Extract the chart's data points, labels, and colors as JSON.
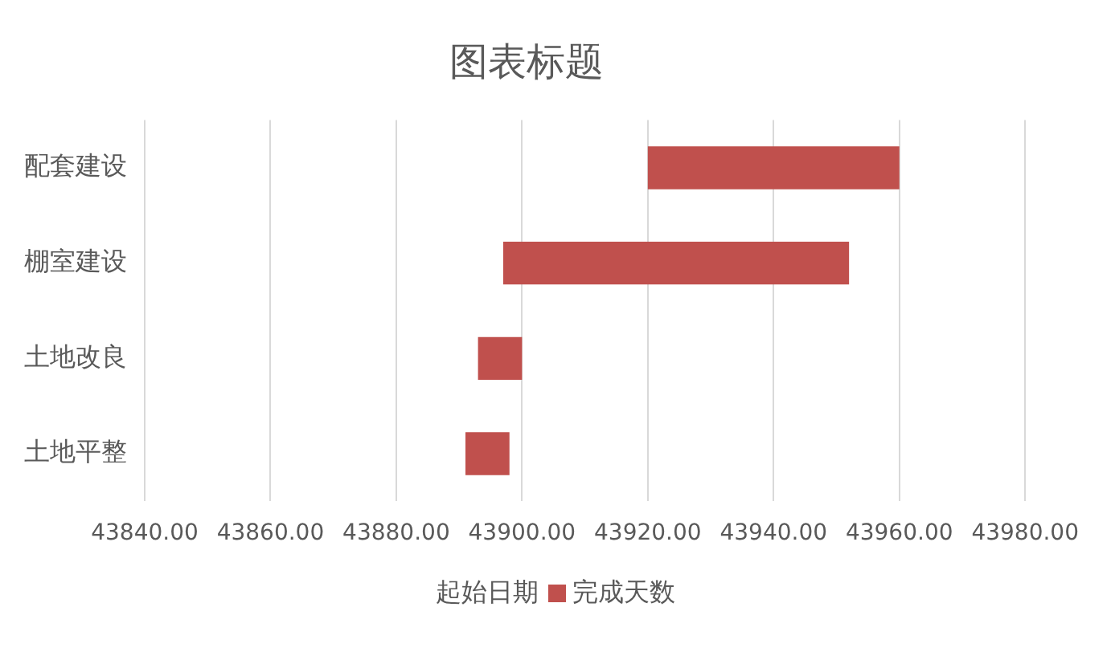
{
  "chart_data": {
    "type": "bar",
    "orientation": "horizontal",
    "title": "图表标题",
    "categories": [
      "配套建设",
      "棚室建设",
      "土地改良",
      "土地平整"
    ],
    "series": [
      {
        "name": "完成天数",
        "color": "#c0504d",
        "base": [
          43920,
          43897,
          43893,
          43891
        ],
        "values": [
          40,
          55,
          7,
          7
        ]
      }
    ],
    "legend_title": "起始日期",
    "xlim": [
      43840,
      43980
    ],
    "xticks": [
      {
        "value": 43840,
        "label": "43840.00"
      },
      {
        "value": 43860,
        "label": "43860.00"
      },
      {
        "value": 43880,
        "label": "43880.00"
      },
      {
        "value": 43900,
        "label": "43900.00"
      },
      {
        "value": 43920,
        "label": "43920.00"
      },
      {
        "value": 43940,
        "label": "43940.00"
      },
      {
        "value": 43960,
        "label": "43960.00"
      },
      {
        "value": 43980,
        "label": "43980.00"
      }
    ],
    "grid": "x",
    "legend": "bottom"
  }
}
